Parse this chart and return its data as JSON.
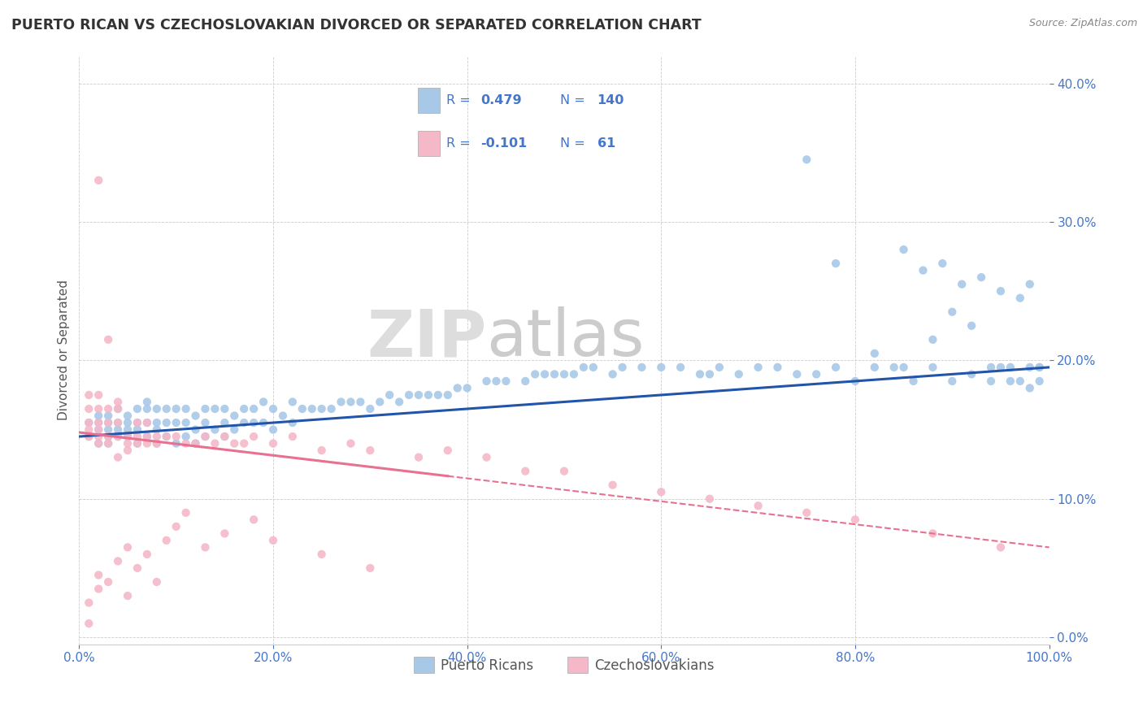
{
  "title": "PUERTO RICAN VS CZECHOSLOVAKIAN DIVORCED OR SEPARATED CORRELATION CHART",
  "source_text": "Source: ZipAtlas.com",
  "ylabel": "Divorced or Separated",
  "watermark_zip": "ZIP",
  "watermark_atlas": "atlas",
  "legend_labels": [
    "Puerto Ricans",
    "Czechoslovakians"
  ],
  "blue_r": "0.479",
  "blue_n": "140",
  "pink_r": "-0.101",
  "pink_n": "61",
  "blue_scatter_color": "#A8C8E8",
  "pink_scatter_color": "#F4B8C8",
  "blue_line_color": "#2255AA",
  "pink_line_color": "#E87090",
  "text_color_blue": "#4477CC",
  "text_color_dark": "#333333",
  "tick_color": "#4477CC",
  "title_color": "#333333",
  "source_color": "#888888",
  "ylabel_color": "#555555",
  "grid_color": "#CCCCCC",
  "legend_box_color": "#DDDDDD",
  "xlim": [
    0.0,
    1.0
  ],
  "ylim": [
    -0.005,
    0.42
  ],
  "ytick_vals": [
    0.0,
    0.1,
    0.2,
    0.3,
    0.4
  ],
  "xtick_vals": [
    0.0,
    0.2,
    0.4,
    0.6,
    0.8,
    1.0
  ],
  "blue_x": [
    0.01,
    0.01,
    0.02,
    0.02,
    0.02,
    0.02,
    0.03,
    0.03,
    0.03,
    0.03,
    0.03,
    0.04,
    0.04,
    0.04,
    0.04,
    0.05,
    0.05,
    0.05,
    0.05,
    0.06,
    0.06,
    0.06,
    0.06,
    0.07,
    0.07,
    0.07,
    0.07,
    0.08,
    0.08,
    0.08,
    0.08,
    0.09,
    0.09,
    0.09,
    0.1,
    0.1,
    0.1,
    0.11,
    0.11,
    0.11,
    0.12,
    0.12,
    0.12,
    0.13,
    0.13,
    0.13,
    0.14,
    0.14,
    0.15,
    0.15,
    0.15,
    0.16,
    0.16,
    0.17,
    0.17,
    0.18,
    0.18,
    0.19,
    0.19,
    0.2,
    0.2,
    0.21,
    0.22,
    0.22,
    0.23,
    0.24,
    0.25,
    0.26,
    0.27,
    0.28,
    0.29,
    0.3,
    0.31,
    0.32,
    0.33,
    0.34,
    0.35,
    0.36,
    0.37,
    0.38,
    0.39,
    0.4,
    0.42,
    0.43,
    0.44,
    0.46,
    0.47,
    0.48,
    0.49,
    0.5,
    0.51,
    0.52,
    0.53,
    0.55,
    0.56,
    0.58,
    0.6,
    0.62,
    0.64,
    0.65,
    0.66,
    0.68,
    0.7,
    0.72,
    0.74,
    0.76,
    0.78,
    0.8,
    0.82,
    0.84,
    0.86,
    0.88,
    0.9,
    0.92,
    0.94,
    0.95,
    0.96,
    0.97,
    0.98,
    0.99,
    0.99,
    0.85,
    0.87,
    0.89,
    0.91,
    0.93,
    0.95,
    0.97,
    0.98,
    0.99,
    0.75,
    0.78,
    0.82,
    0.85,
    0.88,
    0.9,
    0.92,
    0.94,
    0.96,
    0.98
  ],
  "blue_y": [
    0.145,
    0.155,
    0.14,
    0.155,
    0.16,
    0.15,
    0.14,
    0.15,
    0.155,
    0.145,
    0.16,
    0.145,
    0.15,
    0.155,
    0.165,
    0.145,
    0.155,
    0.16,
    0.15,
    0.15,
    0.155,
    0.165,
    0.14,
    0.145,
    0.155,
    0.165,
    0.17,
    0.14,
    0.15,
    0.155,
    0.165,
    0.145,
    0.155,
    0.165,
    0.14,
    0.155,
    0.165,
    0.145,
    0.155,
    0.165,
    0.14,
    0.15,
    0.16,
    0.145,
    0.155,
    0.165,
    0.15,
    0.165,
    0.145,
    0.155,
    0.165,
    0.15,
    0.16,
    0.155,
    0.165,
    0.155,
    0.165,
    0.155,
    0.17,
    0.15,
    0.165,
    0.16,
    0.155,
    0.17,
    0.165,
    0.165,
    0.165,
    0.165,
    0.17,
    0.17,
    0.17,
    0.165,
    0.17,
    0.175,
    0.17,
    0.175,
    0.175,
    0.175,
    0.175,
    0.175,
    0.18,
    0.18,
    0.185,
    0.185,
    0.185,
    0.185,
    0.19,
    0.19,
    0.19,
    0.19,
    0.19,
    0.195,
    0.195,
    0.19,
    0.195,
    0.195,
    0.195,
    0.195,
    0.19,
    0.19,
    0.195,
    0.19,
    0.195,
    0.195,
    0.19,
    0.19,
    0.195,
    0.185,
    0.195,
    0.195,
    0.185,
    0.195,
    0.185,
    0.19,
    0.185,
    0.195,
    0.195,
    0.185,
    0.195,
    0.195,
    0.185,
    0.28,
    0.265,
    0.27,
    0.255,
    0.26,
    0.25,
    0.245,
    0.255,
    0.195,
    0.345,
    0.27,
    0.205,
    0.195,
    0.215,
    0.235,
    0.225,
    0.195,
    0.185,
    0.18
  ],
  "pink_x": [
    0.01,
    0.01,
    0.01,
    0.01,
    0.01,
    0.02,
    0.02,
    0.02,
    0.02,
    0.02,
    0.02,
    0.03,
    0.03,
    0.03,
    0.03,
    0.04,
    0.04,
    0.04,
    0.04,
    0.05,
    0.05,
    0.05,
    0.06,
    0.06,
    0.06,
    0.07,
    0.07,
    0.07,
    0.08,
    0.08,
    0.09,
    0.1,
    0.11,
    0.12,
    0.13,
    0.14,
    0.15,
    0.16,
    0.17,
    0.18,
    0.2,
    0.22,
    0.25,
    0.28,
    0.3,
    0.35,
    0.38,
    0.42,
    0.46,
    0.5,
    0.55,
    0.6,
    0.65,
    0.7,
    0.75,
    0.8,
    0.88,
    0.95,
    0.02,
    0.03,
    0.04
  ],
  "pink_y": [
    0.145,
    0.155,
    0.165,
    0.175,
    0.15,
    0.145,
    0.155,
    0.165,
    0.15,
    0.14,
    0.175,
    0.145,
    0.155,
    0.14,
    0.165,
    0.145,
    0.155,
    0.13,
    0.165,
    0.145,
    0.14,
    0.135,
    0.145,
    0.14,
    0.155,
    0.145,
    0.14,
    0.155,
    0.14,
    0.145,
    0.145,
    0.145,
    0.14,
    0.14,
    0.145,
    0.14,
    0.145,
    0.14,
    0.14,
    0.145,
    0.14,
    0.145,
    0.135,
    0.14,
    0.135,
    0.13,
    0.135,
    0.13,
    0.12,
    0.12,
    0.11,
    0.105,
    0.1,
    0.095,
    0.09,
    0.085,
    0.075,
    0.065,
    0.33,
    0.215,
    0.17
  ],
  "pink_x_extra": [
    0.01,
    0.01,
    0.02,
    0.02,
    0.03,
    0.04,
    0.05,
    0.05,
    0.06,
    0.07,
    0.08,
    0.09,
    0.1,
    0.11,
    0.13,
    0.15,
    0.18,
    0.2,
    0.25,
    0.3
  ],
  "pink_y_extra": [
    0.025,
    0.01,
    0.035,
    0.045,
    0.04,
    0.055,
    0.03,
    0.065,
    0.05,
    0.06,
    0.04,
    0.07,
    0.08,
    0.09,
    0.065,
    0.075,
    0.085,
    0.07,
    0.06,
    0.05
  ],
  "pink_trendline_x0": 0.0,
  "pink_trendline_x_transition": 0.38,
  "pink_trendline_x1": 1.0,
  "blue_trendline_x0": 0.0,
  "blue_trendline_x1": 1.0
}
